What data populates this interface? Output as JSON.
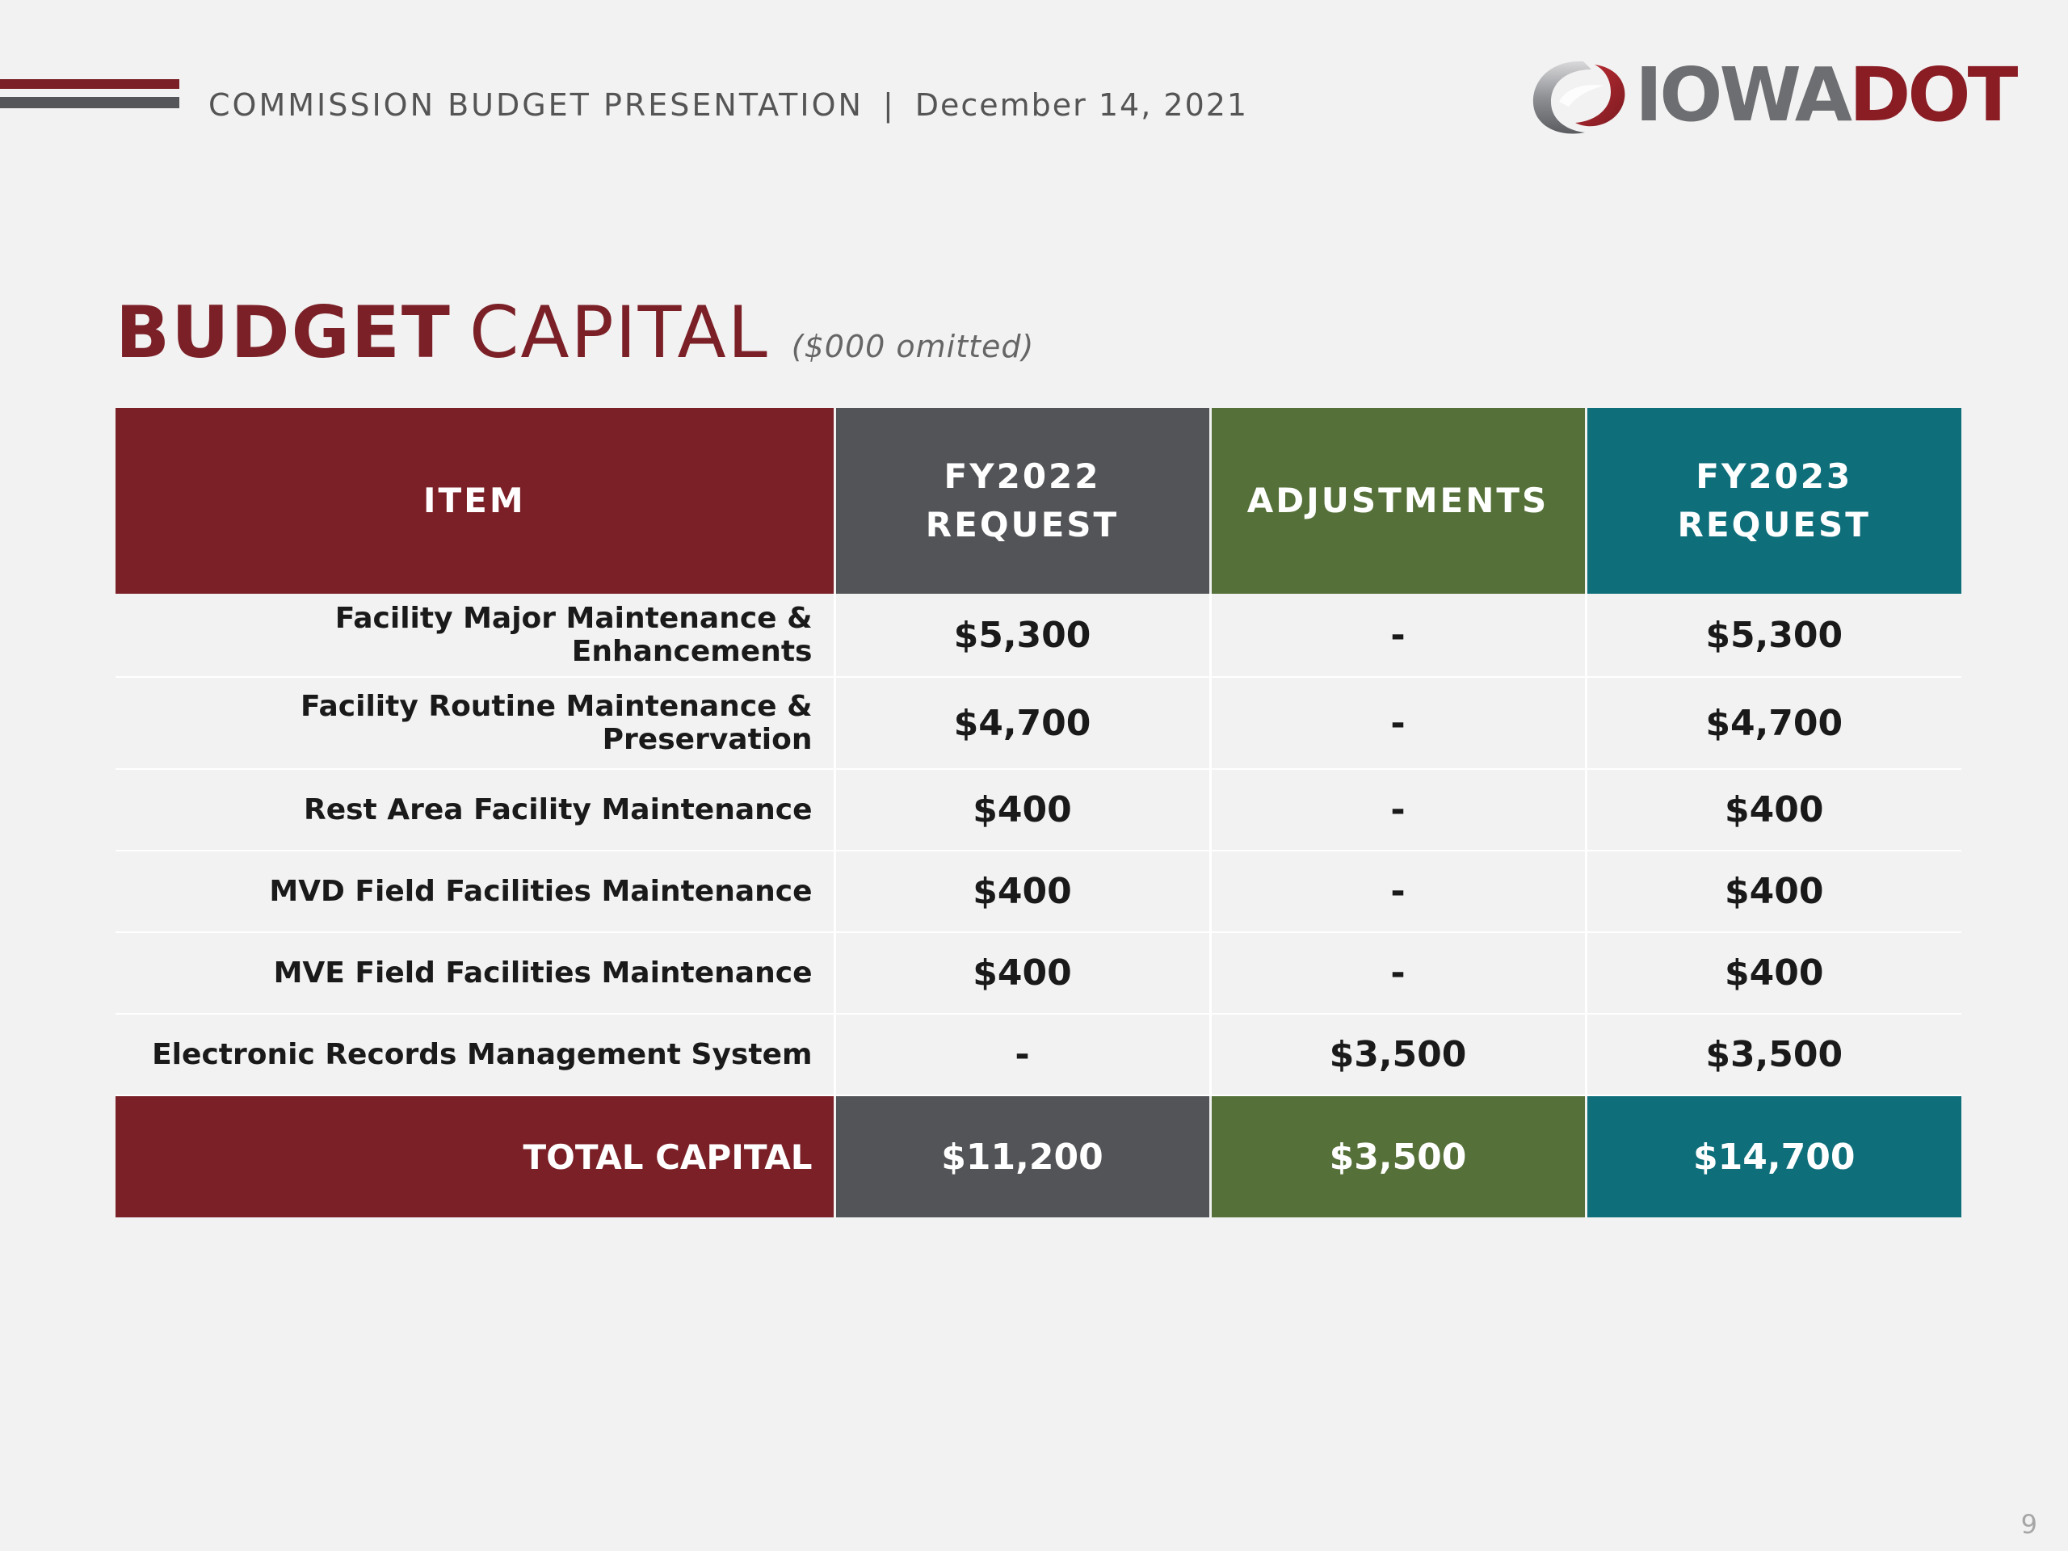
{
  "header": {
    "presentation_title": "COMMISSION BUDGET PRESENTATION",
    "separator": "|",
    "date": "December 14, 2021"
  },
  "logo": {
    "word_iowa": "IOWA",
    "word_dot": "DOT",
    "colors": {
      "gray": "#6d6e71",
      "red": "#8a1c24"
    }
  },
  "title": {
    "bold_part": "BUDGET",
    "light_part": "CAPITAL",
    "note": "($000 omitted)"
  },
  "table": {
    "columns": [
      {
        "line1": "ITEM",
        "line2": "",
        "color": "#7b2027"
      },
      {
        "line1": "FY2022",
        "line2": "REQUEST",
        "color": "#535457"
      },
      {
        "line1": "ADJUSTMENTS",
        "line2": "",
        "color": "#557038"
      },
      {
        "line1": "FY2023",
        "line2": "REQUEST",
        "color": "#0e6f7b"
      }
    ],
    "rows": [
      {
        "item": "Facility Major Maintenance & Enhancements",
        "fy2022": "$5,300",
        "adjustments": "-",
        "fy2023": "$5,300"
      },
      {
        "item": "Facility Routine Maintenance & Preservation",
        "fy2022": "$4,700",
        "adjustments": "-",
        "fy2023": "$4,700"
      },
      {
        "item": "Rest Area Facility Maintenance",
        "fy2022": "$400",
        "adjustments": "-",
        "fy2023": "$400"
      },
      {
        "item": "MVD Field Facilities Maintenance",
        "fy2022": "$400",
        "adjustments": "-",
        "fy2023": "$400"
      },
      {
        "item": "MVE Field Facilities Maintenance",
        "fy2022": "$400",
        "adjustments": "-",
        "fy2023": "$400"
      },
      {
        "item": "Electronic Records Management System",
        "fy2022": "-",
        "adjustments": "$3,500",
        "fy2023": "$3,500"
      }
    ],
    "total": {
      "item": "TOTAL CAPITAL",
      "fy2022": "$11,200",
      "adjustments": "$3,500",
      "fy2023": "$14,700"
    }
  },
  "page_number": "9"
}
